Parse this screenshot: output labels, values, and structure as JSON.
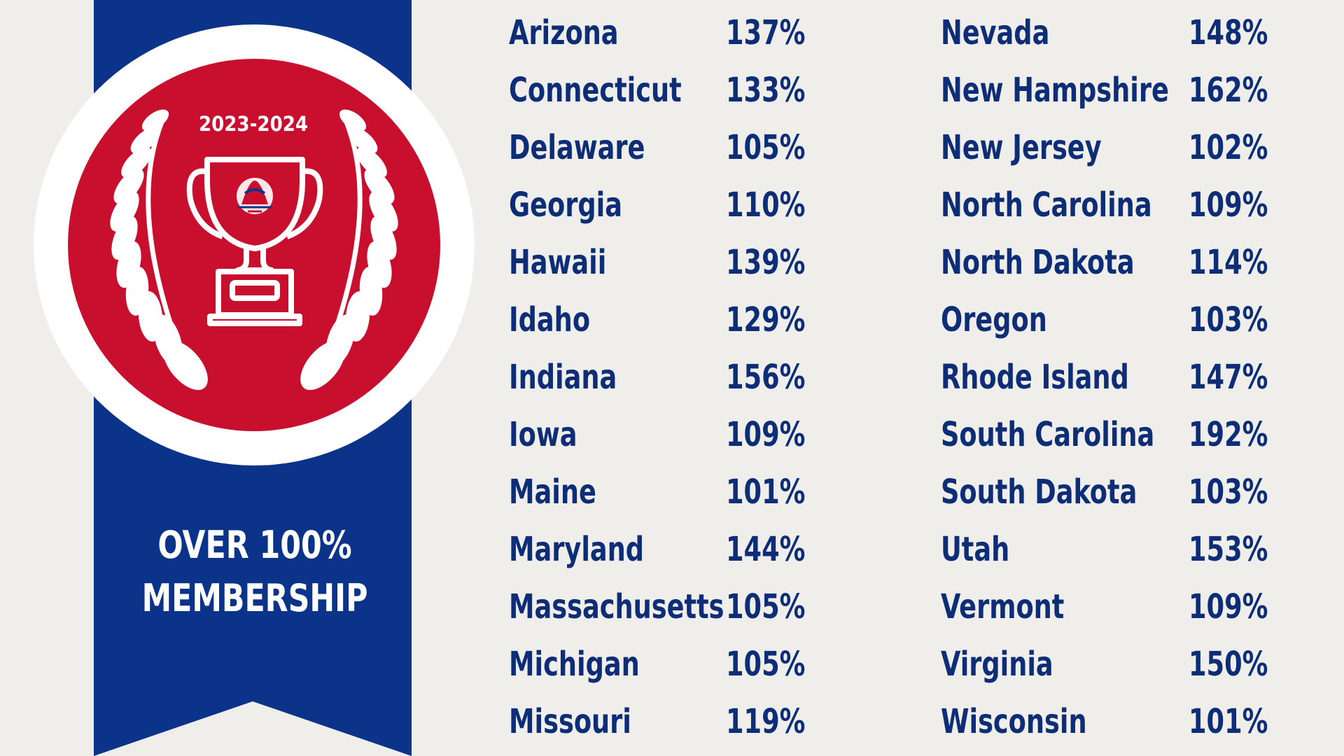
{
  "badge": {
    "year": "2023-2024",
    "trophy_icon": "trophy-icon",
    "laurel_icon": "laurel-wreath-icon",
    "emblem_icon": "association-logo-icon"
  },
  "ribbon": {
    "line1": "OVER 100%",
    "line2": "MEMBERSHIP"
  },
  "colors": {
    "background": "#efeeea",
    "ribbon_blue": "#0b3389",
    "badge_red": "#c8102e",
    "text_blue": "#0e2d77",
    "white": "#ffffff"
  },
  "states_left": [
    {
      "name": "Arizona",
      "pct": "137%"
    },
    {
      "name": "Connecticut",
      "pct": "133%"
    },
    {
      "name": "Delaware",
      "pct": "105%"
    },
    {
      "name": "Georgia",
      "pct": "110%"
    },
    {
      "name": "Hawaii",
      "pct": "139%"
    },
    {
      "name": "Idaho",
      "pct": "129%"
    },
    {
      "name": "Indiana",
      "pct": "156%"
    },
    {
      "name": "Iowa",
      "pct": "109%"
    },
    {
      "name": "Maine",
      "pct": "101%"
    },
    {
      "name": "Maryland",
      "pct": "144%"
    },
    {
      "name": "Massachusetts",
      "pct": "105%"
    },
    {
      "name": "Michigan",
      "pct": "105%"
    },
    {
      "name": "Missouri",
      "pct": "119%"
    }
  ],
  "states_right": [
    {
      "name": "Nevada",
      "pct": "148%"
    },
    {
      "name": "New Hampshire",
      "pct": "162%"
    },
    {
      "name": "New Jersey",
      "pct": "102%"
    },
    {
      "name": "North Carolina",
      "pct": "109%"
    },
    {
      "name": "North Dakota",
      "pct": "114%"
    },
    {
      "name": "Oregon",
      "pct": "103%"
    },
    {
      "name": "Rhode Island",
      "pct": "147%"
    },
    {
      "name": "South Carolina",
      "pct": "192%"
    },
    {
      "name": "South Dakota",
      "pct": "103%"
    },
    {
      "name": "Utah",
      "pct": "153%"
    },
    {
      "name": "Vermont",
      "pct": "109%"
    },
    {
      "name": "Virginia",
      "pct": "150%"
    },
    {
      "name": "Wisconsin",
      "pct": "101%"
    }
  ]
}
